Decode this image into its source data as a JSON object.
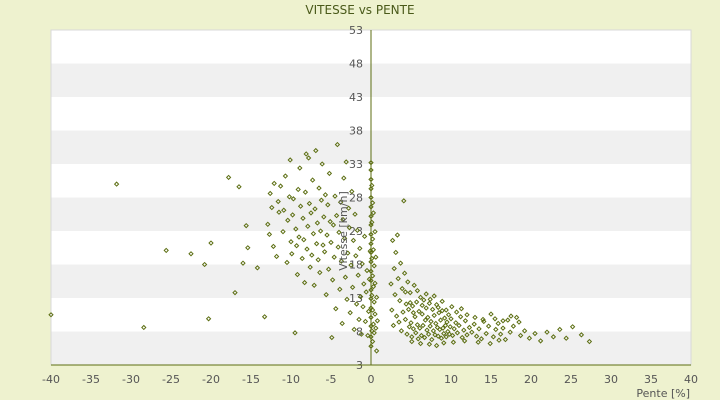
{
  "chart_data": {
    "type": "scatter",
    "title": "VITESSE vs PENTE",
    "xlabel": "Pente [%]",
    "ylabel": "Vitesse [km/h]",
    "xlim": [
      -40,
      40
    ],
    "ylim": [
      3,
      53
    ],
    "x_ticks": [
      -40,
      -35,
      -30,
      -25,
      -20,
      -15,
      -10,
      -5,
      0,
      5,
      10,
      15,
      20,
      25,
      30,
      35,
      40
    ],
    "y_ticks": [
      3,
      8,
      13,
      18,
      23,
      28,
      33,
      38,
      43,
      48,
      53
    ],
    "grid": "alternating horizontal bands",
    "legend": "none",
    "colors": {
      "point": "#5c6e12",
      "band_light": "#ffffff",
      "band_dark": "#f0f0f0",
      "background": "#eef2cf"
    },
    "points": [
      [
        -40,
        10.5
      ],
      [
        -31.8,
        30
      ],
      [
        -28.4,
        8.6
      ],
      [
        -25.6,
        20.1
      ],
      [
        -22.5,
        19.6
      ],
      [
        -20.8,
        18
      ],
      [
        -20.3,
        9.9
      ],
      [
        -20,
        21.2
      ],
      [
        -17.8,
        31
      ],
      [
        -17,
        13.8
      ],
      [
        -16.5,
        29.6
      ],
      [
        -16,
        18.2
      ],
      [
        -15.6,
        23.8
      ],
      [
        -15.4,
        20.5
      ],
      [
        -14.2,
        17.5
      ],
      [
        -13.3,
        10.2
      ],
      [
        -12.9,
        24
      ],
      [
        -12.7,
        22.5
      ],
      [
        -12.6,
        28.6
      ],
      [
        -12.4,
        26.5
      ],
      [
        -12.2,
        20.7
      ],
      [
        -12.1,
        30.1
      ],
      [
        -11.8,
        19.2
      ],
      [
        -11.6,
        27.4
      ],
      [
        -11.5,
        25.8
      ],
      [
        -11.3,
        29.7
      ],
      [
        -11,
        22.9
      ],
      [
        -10.9,
        26.1
      ],
      [
        -10.7,
        31.2
      ],
      [
        -10.5,
        18.3
      ],
      [
        -10.4,
        24.6
      ],
      [
        -10.2,
        28.1
      ],
      [
        -10.1,
        33.6
      ],
      [
        -10,
        21.4
      ],
      [
        -9.9,
        19.6
      ],
      [
        -9.8,
        25.4
      ],
      [
        -9.7,
        27.8
      ],
      [
        -9.5,
        7.8
      ],
      [
        -9.4,
        23.3
      ],
      [
        -9.3,
        20.8
      ],
      [
        -9.2,
        16.5
      ],
      [
        -9.1,
        29.2
      ],
      [
        -9,
        22.1
      ],
      [
        -8.9,
        32.4
      ],
      [
        -8.8,
        26.7
      ],
      [
        -8.6,
        18.9
      ],
      [
        -8.5,
        24.9
      ],
      [
        -8.4,
        21.7
      ],
      [
        -8.3,
        15.3
      ],
      [
        -8.2,
        28.8
      ],
      [
        -8.1,
        34.5
      ],
      [
        -8,
        20.3
      ],
      [
        -7.9,
        23.7
      ],
      [
        -7.8,
        33.9
      ],
      [
        -7.7,
        27.1
      ],
      [
        -7.6,
        17.6
      ],
      [
        -7.5,
        25.7
      ],
      [
        -7.4,
        19.4
      ],
      [
        -7.3,
        30.6
      ],
      [
        -7.2,
        22.6
      ],
      [
        -7.1,
        14.9
      ],
      [
        -7,
        26.3
      ],
      [
        -6.9,
        35
      ],
      [
        -6.8,
        21.1
      ],
      [
        -6.7,
        24.2
      ],
      [
        -6.6,
        18.7
      ],
      [
        -6.5,
        29.4
      ],
      [
        -6.4,
        16.8
      ],
      [
        -6.3,
        23
      ],
      [
        -6.2,
        27.6
      ],
      [
        -6.1,
        33
      ],
      [
        -6,
        20.9
      ],
      [
        -5.9,
        25.1
      ],
      [
        -5.8,
        19.9
      ],
      [
        -5.7,
        28.4
      ],
      [
        -5.6,
        13.5
      ],
      [
        -5.5,
        22.4
      ],
      [
        -5.4,
        26.9
      ],
      [
        -5.3,
        17.3
      ],
      [
        -5.2,
        31.6
      ],
      [
        -5.1,
        24.4
      ],
      [
        -5,
        21.3
      ],
      [
        -4.9,
        7.1
      ],
      [
        -4.8,
        15.7
      ],
      [
        -4.7,
        23.9
      ],
      [
        -4.6,
        19.1
      ],
      [
        -4.5,
        28.2
      ],
      [
        -4.4,
        11.4
      ],
      [
        -4.3,
        25.3
      ],
      [
        -4.2,
        35.9
      ],
      [
        -4.1,
        20.6
      ],
      [
        -4,
        22.8
      ],
      [
        -3.9,
        14.3
      ],
      [
        -3.8,
        27.3
      ],
      [
        -3.7,
        18.5
      ],
      [
        -3.6,
        9.2
      ],
      [
        -3.5,
        24.7
      ],
      [
        -3.4,
        30.9
      ],
      [
        -3.3,
        21.9
      ],
      [
        -3.2,
        16.1
      ],
      [
        -3.1,
        33.3
      ],
      [
        -3,
        12.8
      ],
      [
        -2.9,
        19.7
      ],
      [
        -2.8,
        26.4
      ],
      [
        -2.7,
        23.5
      ],
      [
        -2.6,
        10.8
      ],
      [
        -2.5,
        17.9
      ],
      [
        -2.4,
        28.9
      ],
      [
        -2.3,
        14.6
      ],
      [
        -2.2,
        21.6
      ],
      [
        -2.1,
        8.3
      ],
      [
        -2,
        25.5
      ],
      [
        -1.9,
        19.3
      ],
      [
        -1.8,
        12.1
      ],
      [
        -1.7,
        23.1
      ],
      [
        -1.6,
        16.4
      ],
      [
        -1.5,
        9.8
      ],
      [
        -1.4,
        20.4
      ],
      [
        -1.3,
        13.2
      ],
      [
        -1.2,
        7.6
      ],
      [
        -1.1,
        18.1
      ],
      [
        -1,
        11.7
      ],
      [
        -0.9,
        15.1
      ],
      [
        -0.8,
        22.2
      ],
      [
        -0.7,
        9.5
      ],
      [
        -0.6,
        13.9
      ],
      [
        -0.5,
        17.1
      ],
      [
        -0.4,
        7.4
      ],
      [
        -0.3,
        11
      ],
      [
        -0.2,
        15.8
      ],
      [
        -0.1,
        20
      ],
      [
        0,
        5.8
      ],
      [
        0,
        7.2
      ],
      [
        0,
        8.8
      ],
      [
        0,
        10.1
      ],
      [
        0,
        11.5
      ],
      [
        0,
        12.9
      ],
      [
        0,
        14.2
      ],
      [
        0,
        15.6
      ],
      [
        0,
        17
      ],
      [
        0,
        18.4
      ],
      [
        0,
        19.8
      ],
      [
        0,
        21.1
      ],
      [
        0,
        22.5
      ],
      [
        0,
        23.9
      ],
      [
        0,
        25.2
      ],
      [
        0,
        26.6
      ],
      [
        0,
        28
      ],
      [
        0,
        29.3
      ],
      [
        0,
        30.7
      ],
      [
        0,
        32.1
      ],
      [
        0,
        33.2
      ],
      [
        0.1,
        8.1
      ],
      [
        0.1,
        13.4
      ],
      [
        0.1,
        18.9
      ],
      [
        0.1,
        24.3
      ],
      [
        0.1,
        29.8
      ],
      [
        0.2,
        6.5
      ],
      [
        0.2,
        11.2
      ],
      [
        0.2,
        16.3
      ],
      [
        0.2,
        21.8
      ],
      [
        0.2,
        27.2
      ],
      [
        0.3,
        9.1
      ],
      [
        0.3,
        14.7
      ],
      [
        0.3,
        20.2
      ],
      [
        0.3,
        25.7
      ],
      [
        0.4,
        7.8
      ],
      [
        0.4,
        12.4
      ],
      [
        0.4,
        17.8
      ],
      [
        0.5,
        10.6
      ],
      [
        0.5,
        15.2
      ],
      [
        0.5,
        22.9
      ],
      [
        0.6,
        8.5
      ],
      [
        0.6,
        19.1
      ],
      [
        0.7,
        5.1
      ],
      [
        0.7,
        13.1
      ],
      [
        0.8,
        9.6
      ],
      [
        2.5,
        15.1
      ],
      [
        2.6,
        11.2
      ],
      [
        2.7,
        21.6
      ],
      [
        2.8,
        8.9
      ],
      [
        2.9,
        17.4
      ],
      [
        3,
        13.5
      ],
      [
        3.1,
        19.8
      ],
      [
        3.2,
        10.3
      ],
      [
        3.3,
        22.4
      ],
      [
        3.4,
        15.9
      ],
      [
        3.5,
        9.4
      ],
      [
        3.6,
        12.6
      ],
      [
        3.7,
        18.2
      ],
      [
        3.8,
        8.1
      ],
      [
        3.9,
        14.4
      ],
      [
        4,
        10.9
      ],
      [
        4.1,
        27.5
      ],
      [
        4.2,
        16.7
      ],
      [
        4.3,
        9.8
      ],
      [
        4.4,
        12.1
      ],
      [
        4.5,
        7.6
      ],
      [
        4.6,
        15.4
      ],
      [
        4.7,
        11.3
      ],
      [
        4.8,
        8.7
      ],
      [
        4.9,
        13.8
      ],
      [
        5,
        9.3
      ],
      [
        5.1,
        7.2
      ],
      [
        5.2,
        11.8
      ],
      [
        5.3,
        8.4
      ],
      [
        5.4,
        14.9
      ],
      [
        5.5,
        10.2
      ],
      [
        5.6,
        7.8
      ],
      [
        5.7,
        12.4
      ],
      [
        5.8,
        9
      ],
      [
        5.9,
        6.9
      ],
      [
        6,
        11
      ],
      [
        6.1,
        8.5
      ],
      [
        6.2,
        13.1
      ],
      [
        6.3,
        7.4
      ],
      [
        6.4,
        10.6
      ],
      [
        6.5,
        8.9
      ],
      [
        6.6,
        12.7
      ],
      [
        6.7,
        7.1
      ],
      [
        6.8,
        9.7
      ],
      [
        6.9,
        11.5
      ],
      [
        7,
        8.2
      ],
      [
        7.1,
        10.1
      ],
      [
        7.2,
        7.6
      ],
      [
        7.3,
        12.2
      ],
      [
        7.4,
        8.8
      ],
      [
        7.5,
        9.5
      ],
      [
        7.6,
        6.8
      ],
      [
        7.7,
        11.3
      ],
      [
        7.8,
        8.1
      ],
      [
        7.9,
        10.4
      ],
      [
        8,
        7.5
      ],
      [
        8.1,
        9.2
      ],
      [
        8.2,
        12
      ],
      [
        8.3,
        8.6
      ],
      [
        8.4,
        7.3
      ],
      [
        8.5,
        10.8
      ],
      [
        8.6,
        8.3
      ],
      [
        8.7,
        9.7
      ],
      [
        8.8,
        7
      ],
      [
        8.9,
        11.1
      ],
      [
        9,
        8.5
      ],
      [
        9.1,
        7.7
      ],
      [
        9.2,
        10
      ],
      [
        9.3,
        8.9
      ],
      [
        9.4,
        7.2
      ],
      [
        9.5,
        9.4
      ],
      [
        9.6,
        8
      ],
      [
        9.7,
        10.5
      ],
      [
        9.8,
        7.6
      ],
      [
        9.9,
        8.7
      ],
      [
        10,
        9.9
      ],
      [
        10.2,
        7.4
      ],
      [
        10.4,
        8.4
      ],
      [
        10.6,
        9.3
      ],
      [
        10.8,
        7.8
      ],
      [
        11,
        8.9
      ],
      [
        11.2,
        10.2
      ],
      [
        11.4,
        7.1
      ],
      [
        11.6,
        8.2
      ],
      [
        11.8,
        9.6
      ],
      [
        12,
        7.5
      ],
      [
        12.3,
        8.6
      ],
      [
        12.6,
        7.9
      ],
      [
        12.9,
        9.1
      ],
      [
        13.2,
        7.3
      ],
      [
        13.5,
        8.4
      ],
      [
        13.8,
        6.9
      ],
      [
        14.1,
        9.5
      ],
      [
        14.4,
        7.7
      ],
      [
        14.7,
        8.8
      ],
      [
        15,
        10.6
      ],
      [
        15.3,
        7.2
      ],
      [
        15.6,
        8.3
      ],
      [
        15.9,
        9.2
      ],
      [
        16.2,
        7.6
      ],
      [
        16.5,
        8.5
      ],
      [
        16.8,
        6.8
      ],
      [
        17.1,
        9.7
      ],
      [
        17.4,
        7.9
      ],
      [
        17.8,
        8.8
      ],
      [
        18.2,
        10.1
      ],
      [
        18.7,
        7.4
      ],
      [
        19.2,
        8.1
      ],
      [
        19.8,
        7
      ],
      [
        20.5,
        7.7
      ],
      [
        21.2,
        6.6
      ],
      [
        22,
        7.9
      ],
      [
        22.8,
        7.2
      ],
      [
        23.6,
        8.3
      ],
      [
        24.4,
        7
      ],
      [
        25.2,
        8.7
      ],
      [
        26.3,
        7.5
      ],
      [
        27.3,
        6.5
      ],
      [
        4.3,
        13.9
      ],
      [
        4.9,
        12.3
      ],
      [
        5.3,
        10.8
      ],
      [
        5.8,
        14.1
      ],
      [
        6.4,
        11.9
      ],
      [
        6.9,
        13.6
      ],
      [
        7.4,
        12.8
      ],
      [
        7.9,
        13.3
      ],
      [
        8.4,
        11.6
      ],
      [
        8.9,
        12.5
      ],
      [
        9.4,
        11.2
      ],
      [
        10.1,
        11.7
      ],
      [
        10.7,
        10.9
      ],
      [
        11.3,
        11.4
      ],
      [
        12,
        10.5
      ],
      [
        13,
        10.1
      ],
      [
        14,
        9.8
      ],
      [
        15.5,
        9.9
      ],
      [
        16.5,
        9.6
      ],
      [
        17.5,
        10.3
      ],
      [
        18.5,
        9.4
      ],
      [
        5.1,
        6.5
      ],
      [
        6.2,
        6.2
      ],
      [
        7.3,
        6.1
      ],
      [
        8.2,
        5.9
      ],
      [
        9.1,
        6.3
      ],
      [
        10.3,
        6.4
      ],
      [
        11.7,
        6.6
      ],
      [
        13.4,
        6.4
      ],
      [
        14.9,
        6.2
      ],
      [
        16,
        6.7
      ]
    ]
  }
}
